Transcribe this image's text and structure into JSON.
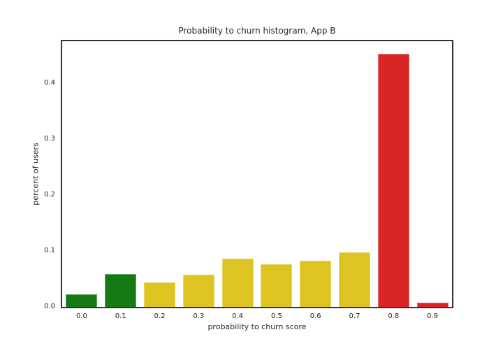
{
  "chart_data": {
    "type": "bar",
    "title": "Probability to churn histogram, App B",
    "xlabel": "probability to churn score",
    "ylabel": "percent of users",
    "categories": [
      "0.0",
      "0.1",
      "0.2",
      "0.3",
      "0.4",
      "0.5",
      "0.6",
      "0.7",
      "0.8",
      "0.9"
    ],
    "values": [
      0.022,
      0.059,
      0.044,
      0.057,
      0.086,
      0.076,
      0.083,
      0.098,
      0.452,
      0.007
    ],
    "bar_colors": [
      "#157a16",
      "#157a16",
      "#ddc420",
      "#ddc420",
      "#ddc420",
      "#ddc420",
      "#ddc420",
      "#ddc420",
      "#d92525",
      "#d92525"
    ],
    "yticks": [
      "0.0",
      "0.1",
      "0.2",
      "0.3",
      "0.4"
    ],
    "ylim": [
      0,
      0.475
    ],
    "grid": false,
    "legend_position": "none",
    "colors": {
      "green": "#157a16",
      "yellow": "#ddc420",
      "red": "#d92525",
      "spine": "#333333",
      "text": "#262626",
      "background": "#ffffff"
    }
  }
}
